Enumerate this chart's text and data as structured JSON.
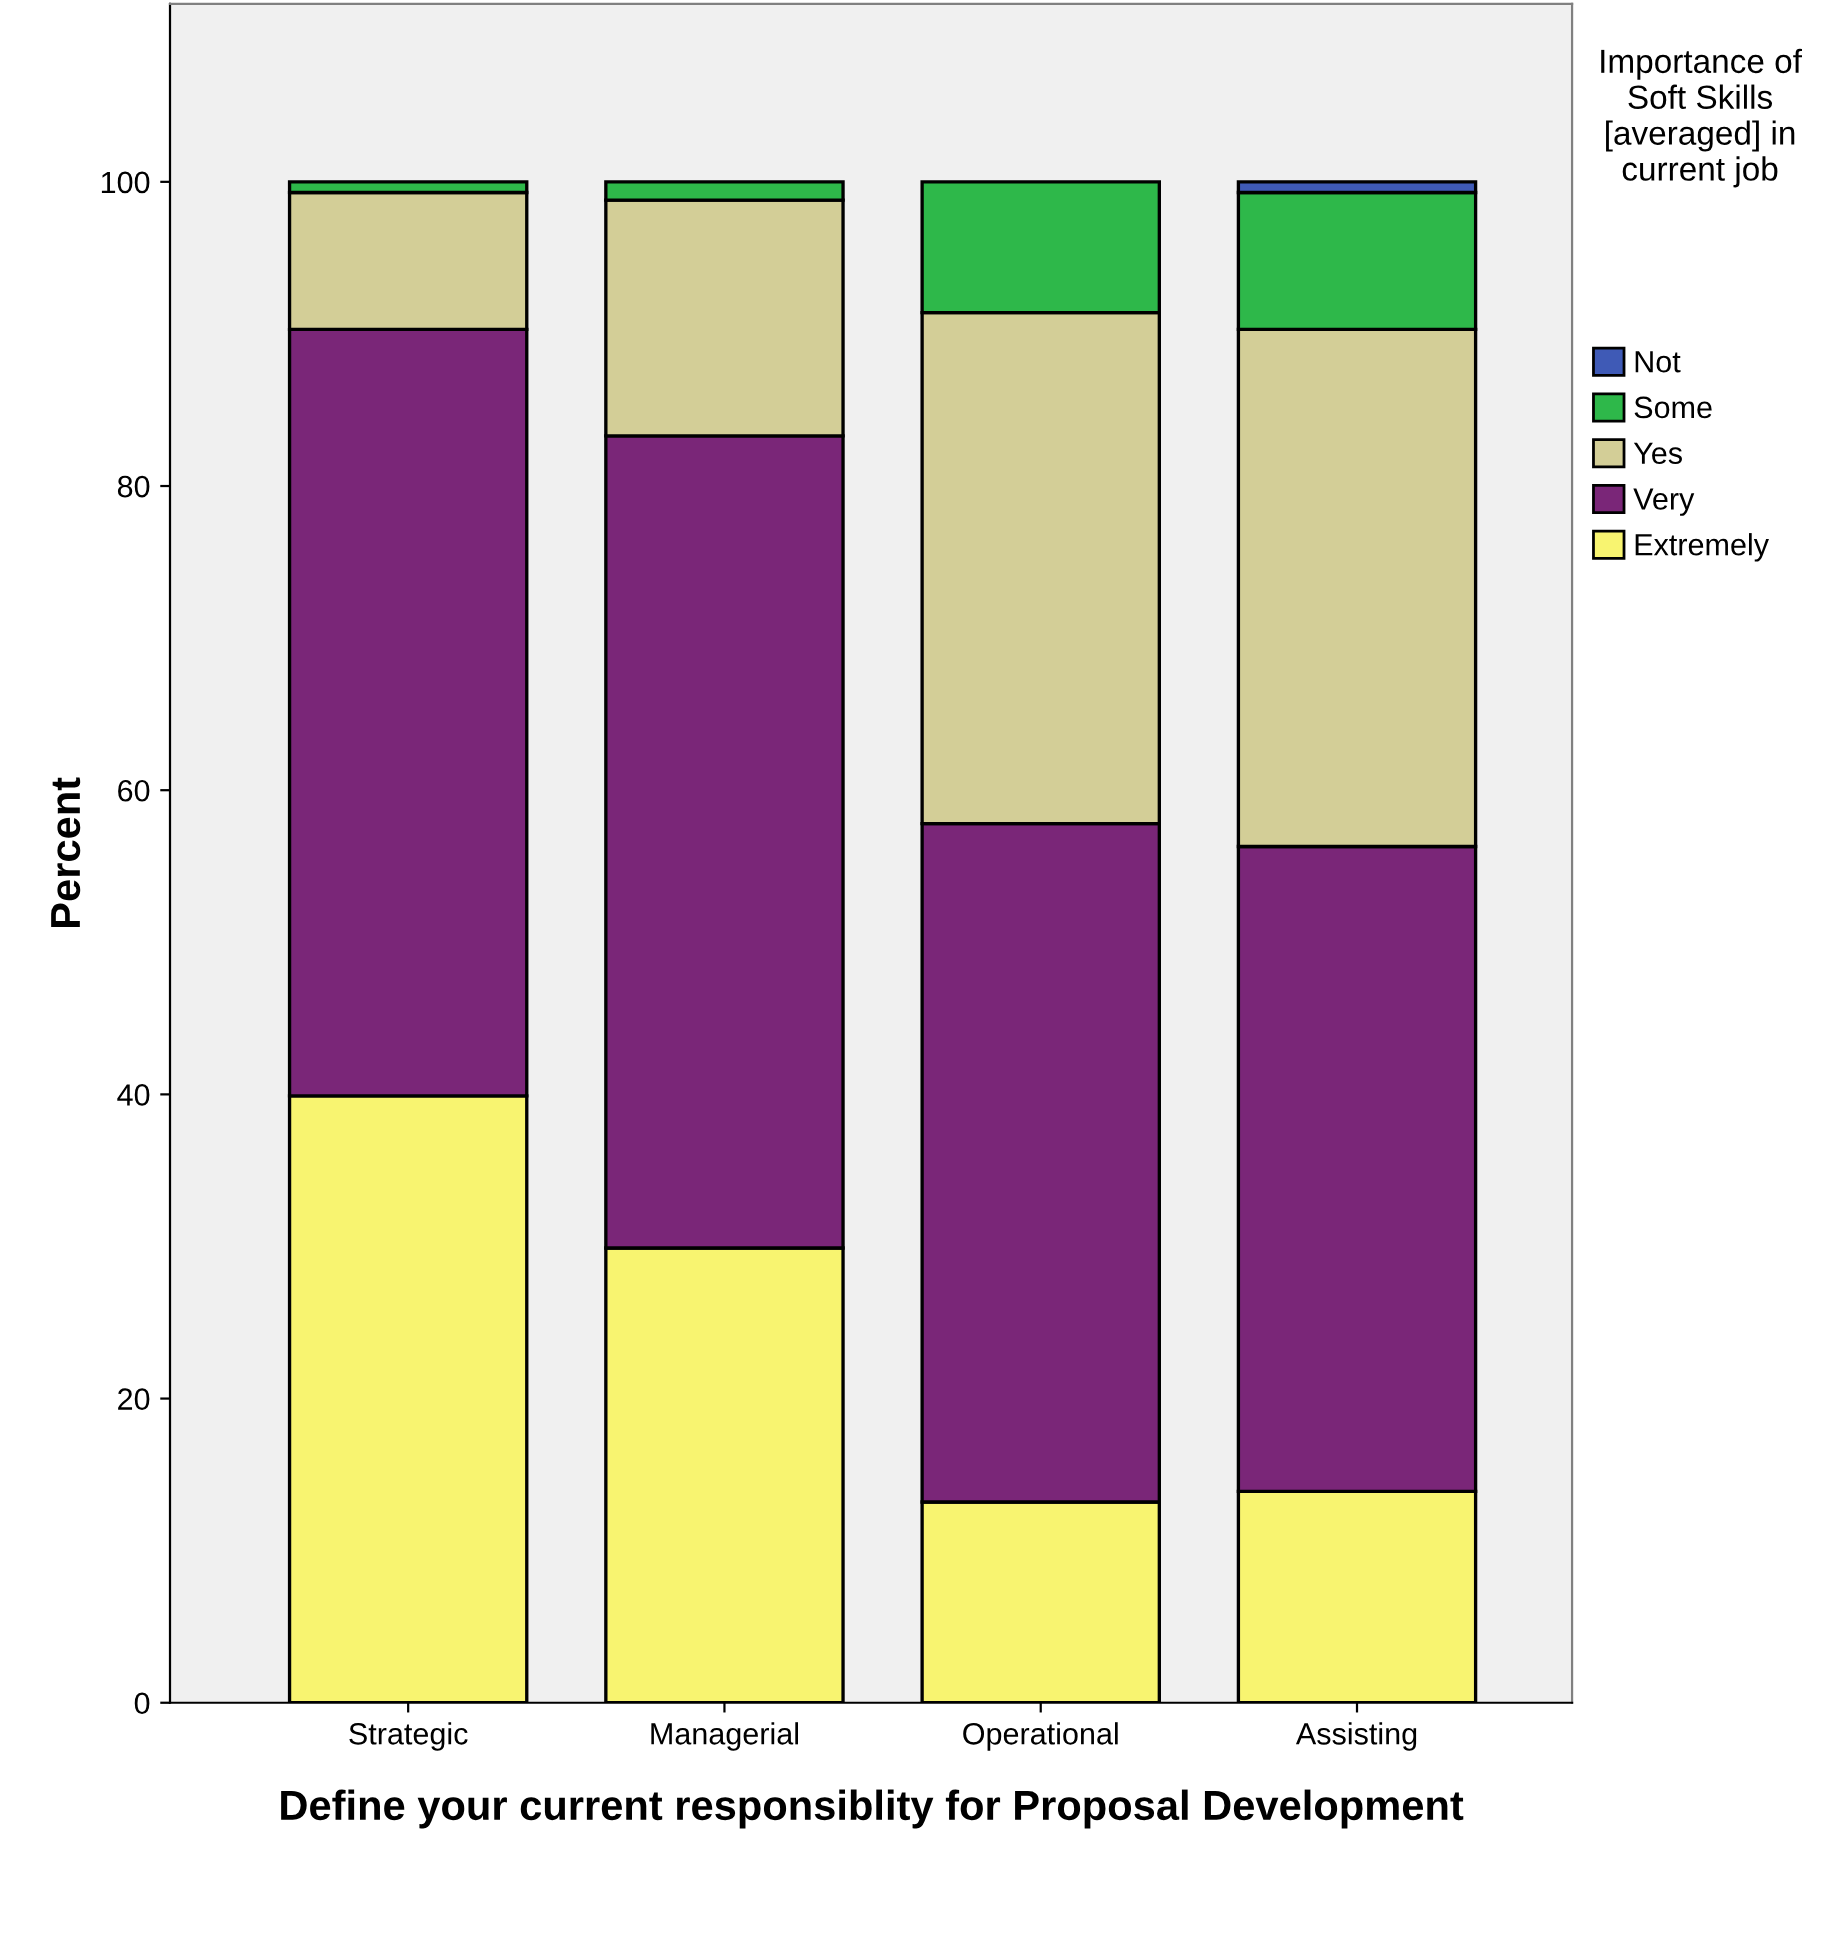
{
  "chart_data": {
    "type": "bar",
    "stacked": true,
    "xlabel": "Define your current responsiblity for Proposal Development",
    "ylabel": "Percent",
    "legend_title": "Importance of Soft Skills [averaged] in current job",
    "legend": "top right",
    "grid": false,
    "categories": [
      "Strategic",
      "Managerial",
      "Operational",
      "Assisting"
    ],
    "ylim": [
      0,
      111.7
    ],
    "yticks": [
      0,
      20,
      40,
      60,
      80,
      100
    ],
    "series": [
      {
        "name": "Extremely",
        "color": "#f8f470",
        "values": [
          39.9,
          29.9,
          13.2,
          13.9
        ]
      },
      {
        "name": "Very",
        "color": "#7a2678",
        "values": [
          50.4,
          53.4,
          44.6,
          42.4
        ]
      },
      {
        "name": "Yes",
        "color": "#d3ce97",
        "values": [
          9.0,
          15.5,
          33.6,
          34.0
        ]
      },
      {
        "name": "Some",
        "color": "#2eb84a",
        "values": [
          0.7,
          1.2,
          8.6,
          9.0
        ]
      },
      {
        "name": "Not",
        "color": "#3f5ab6",
        "values": [
          0,
          0,
          0,
          0.7
        ]
      }
    ]
  }
}
